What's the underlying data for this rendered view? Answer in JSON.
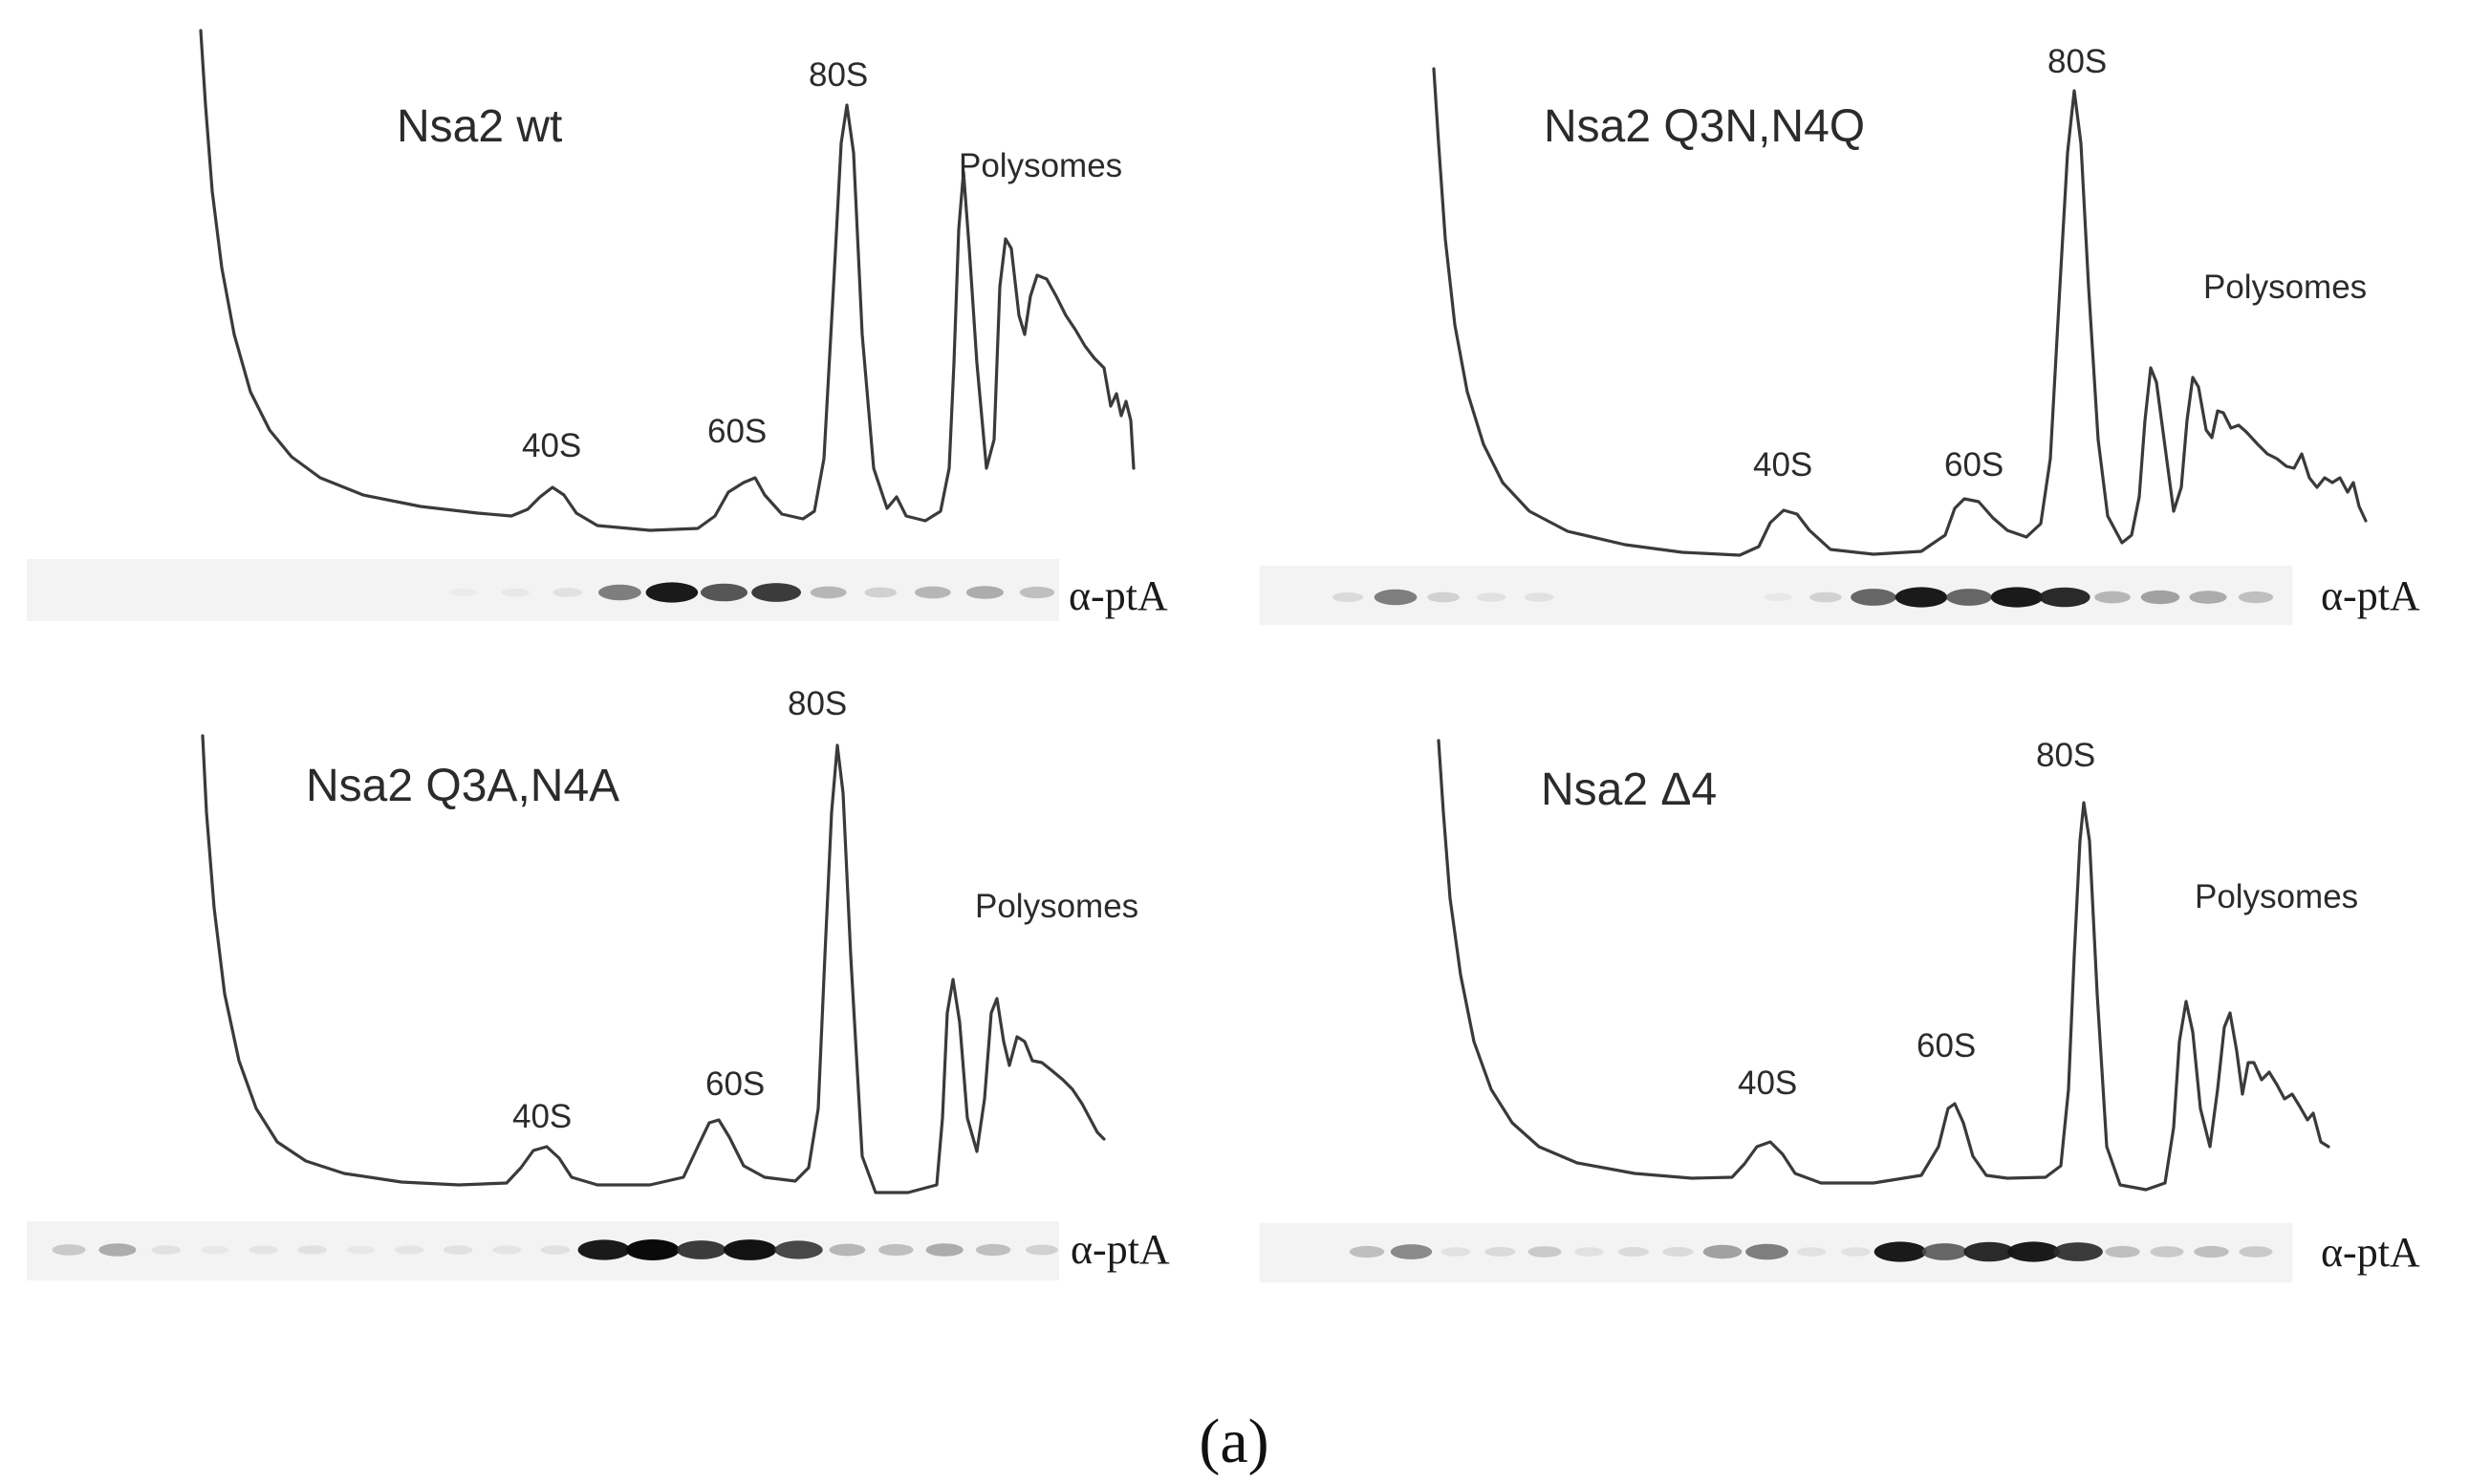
{
  "figure": {
    "caption": "(a)",
    "antibody_label": "α-ptA",
    "panels": [
      {
        "id": "wt",
        "title": "Nsa2 wt",
        "peak_labels": [
          "40S",
          "60S",
          "80S"
        ],
        "polysomes_label": "Polysomes",
        "blot_band_intensity": [
          0,
          0,
          0,
          0,
          0,
          0,
          0,
          0,
          0.03,
          0.05,
          0.1,
          0.6,
          0.95,
          0.75,
          0.85,
          0.35,
          0.2,
          0.35,
          0.4,
          0.3
        ]
      },
      {
        "id": "q3n_n4q",
        "title": "Nsa2 Q3N,N4Q",
        "peak_labels": [
          "40S",
          "60S",
          "80S"
        ],
        "polysomes_label": "Polysomes",
        "blot_band_intensity": [
          0.15,
          0.6,
          0.2,
          0.1,
          0.1,
          0,
          0,
          0,
          0,
          0.05,
          0.2,
          0.7,
          0.95,
          0.7,
          0.95,
          0.9,
          0.35,
          0.45,
          0.4,
          0.3
        ]
      },
      {
        "id": "q3a_n4a",
        "title": "Nsa2 Q3A,N4A",
        "peak_labels": [
          "40S",
          "60S",
          "80S"
        ],
        "polysomes_label": "Polysomes",
        "blot_band_intensity": [
          0.25,
          0.4,
          0.1,
          0.05,
          0.08,
          0.1,
          0.05,
          0.08,
          0.1,
          0.08,
          0.1,
          0.95,
          1.0,
          0.85,
          0.98,
          0.8,
          0.35,
          0.3,
          0.4,
          0.3,
          0.2
        ]
      },
      {
        "id": "delta4",
        "title": "Nsa2 Δ4",
        "peak_labels": [
          "40S",
          "60S",
          "80S"
        ],
        "polysomes_label": "Polysomes",
        "blot_band_intensity": [
          0.3,
          0.55,
          0.1,
          0.15,
          0.25,
          0.1,
          0.15,
          0.15,
          0.45,
          0.6,
          0.1,
          0.1,
          0.95,
          0.7,
          0.9,
          0.95,
          0.85,
          0.3,
          0.25,
          0.3,
          0.25
        ]
      }
    ]
  }
}
